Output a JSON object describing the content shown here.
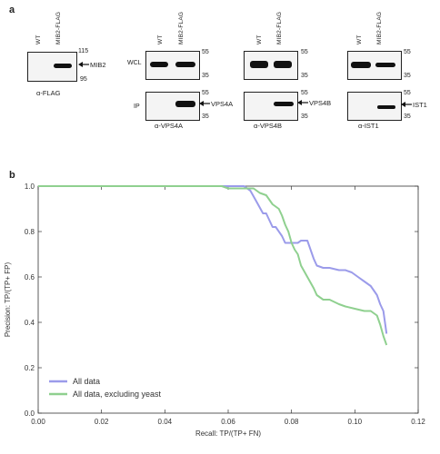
{
  "panel_a": {
    "label": "a",
    "lanes": {
      "wt": "WT",
      "mib2": "MIB2-FLAG"
    },
    "blot1": {
      "mw_top": "115",
      "mw_bottom": "95",
      "protein": "MIB2",
      "antibody": "α-FLAG"
    },
    "blot2": {
      "wcl": "WCL",
      "ip": "IP",
      "mw_wcl_top": "55",
      "mw_wcl_bottom": "35",
      "mw_ip_top": "55",
      "mw_ip_bottom": "35",
      "protein": "VPS4A",
      "antibody": "α-VPS4A"
    },
    "blot3": {
      "mw_wcl_top": "55",
      "mw_wcl_bottom": "35",
      "mw_ip_top": "55",
      "mw_ip_bottom": "35",
      "protein": "VPS4B",
      "antibody": "α-VPS4B"
    },
    "blot4": {
      "mw_wcl_top": "55",
      "mw_wcl_bottom": "35",
      "mw_ip_top": "55",
      "mw_ip_bottom": "35",
      "protein": "IST1",
      "antibody": "α-IST1"
    }
  },
  "panel_b": {
    "label": "b"
  },
  "chart_data": {
    "type": "line",
    "title": "",
    "xlabel": "Recall: TP/(TP+ FN)",
    "ylabel": "Precision: TP/(TP+ FP)",
    "xlim": [
      0.0,
      0.12
    ],
    "ylim": [
      0.0,
      1.0
    ],
    "x_ticks": [
      "0.00",
      "0.02",
      "0.04",
      "0.06",
      "0.08",
      "0.10",
      "0.12"
    ],
    "y_ticks": [
      "0.0",
      "0.2",
      "0.4",
      "0.6",
      "0.8",
      "1.0"
    ],
    "grid": false,
    "legend_position": "bottom-left",
    "series": [
      {
        "name": "All data",
        "color": "#9b9bea",
        "x": [
          0.0,
          0.065,
          0.067,
          0.069,
          0.071,
          0.072,
          0.074,
          0.075,
          0.077,
          0.078,
          0.079,
          0.08,
          0.082,
          0.083,
          0.085,
          0.086,
          0.087,
          0.088,
          0.09,
          0.092,
          0.095,
          0.097,
          0.099,
          0.101,
          0.103,
          0.105,
          0.107,
          0.108,
          0.109,
          0.11
        ],
        "y": [
          1.0,
          1.0,
          0.98,
          0.93,
          0.88,
          0.88,
          0.82,
          0.82,
          0.78,
          0.75,
          0.75,
          0.75,
          0.75,
          0.76,
          0.76,
          0.72,
          0.68,
          0.65,
          0.64,
          0.64,
          0.63,
          0.63,
          0.62,
          0.6,
          0.58,
          0.56,
          0.52,
          0.48,
          0.45,
          0.35
        ]
      },
      {
        "name": "All data, excluding yeast",
        "color": "#8fd08f",
        "x": [
          0.0,
          0.058,
          0.06,
          0.068,
          0.07,
          0.072,
          0.074,
          0.076,
          0.077,
          0.078,
          0.079,
          0.08,
          0.081,
          0.082,
          0.083,
          0.085,
          0.087,
          0.088,
          0.09,
          0.092,
          0.095,
          0.097,
          0.1,
          0.103,
          0.105,
          0.107,
          0.108,
          0.109,
          0.11
        ],
        "y": [
          1.0,
          1.0,
          0.99,
          0.99,
          0.97,
          0.96,
          0.92,
          0.9,
          0.87,
          0.83,
          0.8,
          0.75,
          0.72,
          0.7,
          0.65,
          0.6,
          0.55,
          0.52,
          0.5,
          0.5,
          0.48,
          0.47,
          0.46,
          0.45,
          0.45,
          0.43,
          0.39,
          0.34,
          0.3
        ]
      }
    ]
  }
}
